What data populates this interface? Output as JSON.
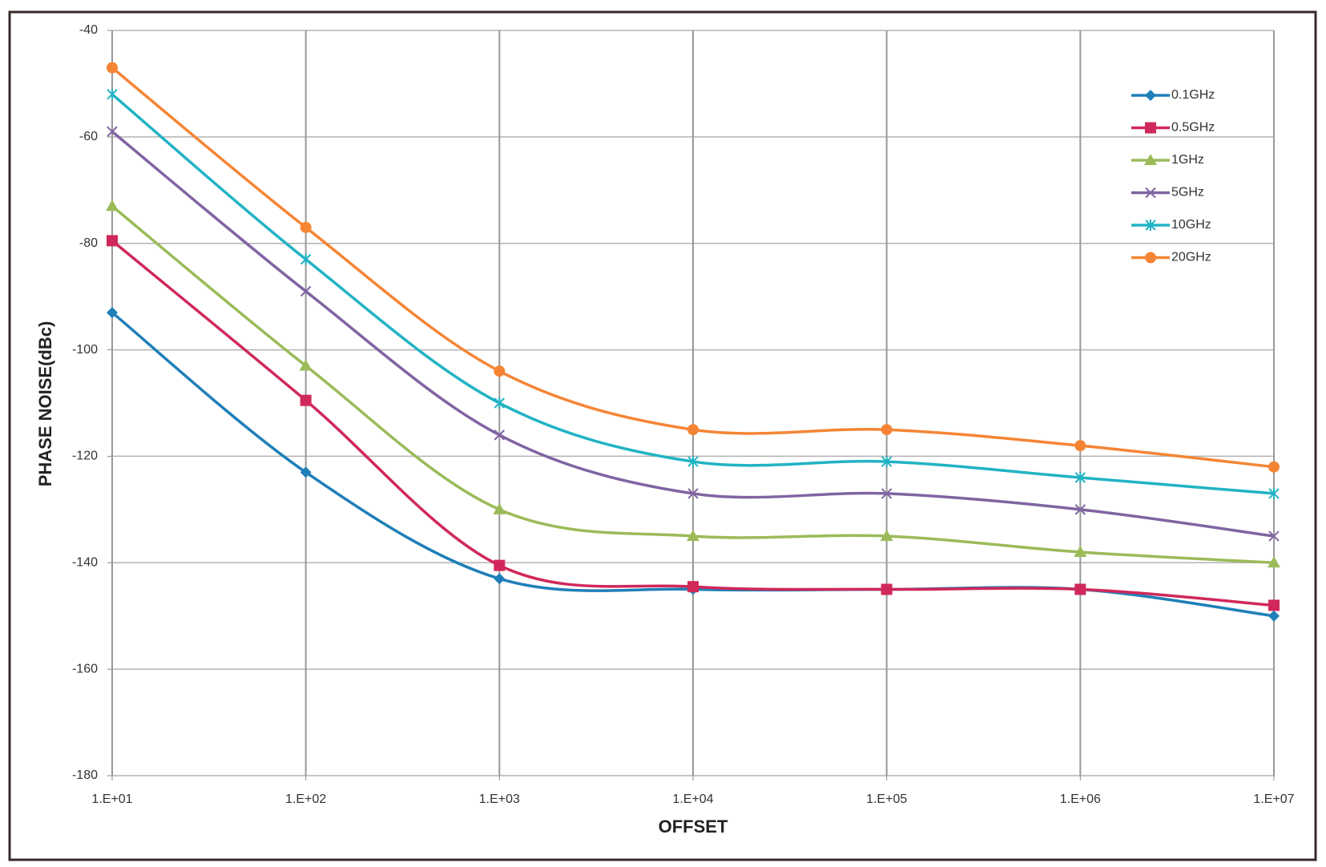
{
  "chart_data": {
    "type": "line",
    "x_axis_label": "OFFSET",
    "y_axis_label": "PHASE NOISE(dBc)",
    "x": [
      10,
      100,
      1000,
      10000,
      100000,
      1000000,
      10000000
    ],
    "xlim": [
      10,
      10000000
    ],
    "xticks": [
      {
        "value": 10,
        "label": "1.E+01"
      },
      {
        "value": 100,
        "label": "1.E+02"
      },
      {
        "value": 1000,
        "label": "1.E+03"
      },
      {
        "value": 10000,
        "label": "1.E+04"
      },
      {
        "value": 100000,
        "label": "1.E+05"
      },
      {
        "value": 1000000,
        "label": "1.E+06"
      },
      {
        "value": 10000000,
        "label": "1.E+07"
      }
    ],
    "x_log_scale": true,
    "ylim": [
      -180,
      -40
    ],
    "yticks": [
      -180,
      -160,
      -140,
      -120,
      -100,
      -80,
      -60,
      -40
    ],
    "grid": true,
    "smooth": true,
    "legend_position": "upper right",
    "series": [
      {
        "name": "0.1GHz",
        "color": "#1f7fb8",
        "marker": "diamond",
        "values": [
          -93,
          -123,
          -143,
          -145,
          -145,
          -145,
          -150
        ]
      },
      {
        "name": "0.5GHz",
        "color": "#d0285a",
        "marker": "square",
        "values": [
          -79.5,
          -109.5,
          -140.5,
          -144.5,
          -145,
          -145,
          -148
        ]
      },
      {
        "name": "1GHz",
        "color": "#9bbb59",
        "marker": "triangle",
        "values": [
          -73,
          -103,
          -130,
          -135,
          -135,
          -138,
          -140
        ]
      },
      {
        "name": "5GHz",
        "color": "#8064a2",
        "marker": "x",
        "values": [
          -59,
          -89,
          -116,
          -127,
          -127,
          -130,
          -135
        ]
      },
      {
        "name": "10GHz",
        "color": "#21b3c4",
        "marker": "star",
        "values": [
          -52,
          -83,
          -110,
          -121,
          -121,
          -124,
          -127
        ]
      },
      {
        "name": "20GHz",
        "color": "#f58535",
        "marker": "circle",
        "values": [
          -47,
          -77,
          -104,
          -115,
          -115,
          -118,
          -122
        ]
      }
    ]
  }
}
